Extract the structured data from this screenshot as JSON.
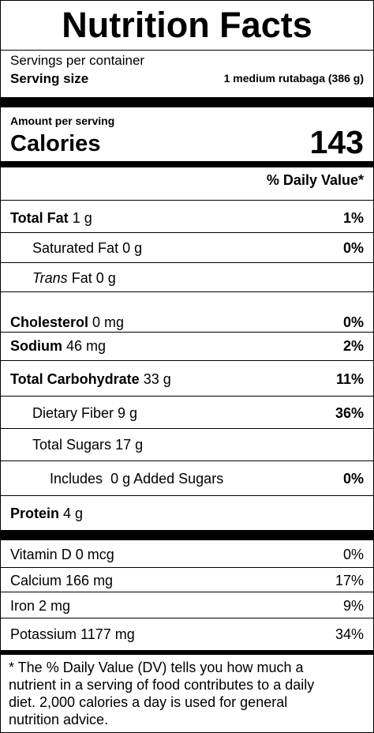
{
  "title": "Nutrition Facts",
  "servings_per_container_label": "Servings per container",
  "serving_size_label": "Serving size",
  "serving_size_value": "1 medium rutabaga (386 g)",
  "amount_per_serving": "Amount per serving",
  "calories_label": "Calories",
  "calories_value": "143",
  "daily_value_header": "% Daily Value*",
  "nutrients": {
    "total_fat": {
      "name": "Total Fat",
      "amount": "1 g",
      "dv": "1%"
    },
    "saturated_fat": {
      "name": "Saturated Fat",
      "amount": "0 g",
      "dv": "0%"
    },
    "trans_fat": {
      "name": "Trans",
      "name_suffix": "Fat",
      "amount": "0 g"
    },
    "cholesterol": {
      "name": "Cholesterol",
      "amount": "0 mg",
      "dv": "0%"
    },
    "sodium": {
      "name": "Sodium",
      "amount": "46 mg",
      "dv": "2%"
    },
    "total_carbohydrate": {
      "name": "Total Carbohydrate",
      "amount": "33 g",
      "dv": "11%"
    },
    "dietary_fiber": {
      "name": "Dietary Fiber",
      "amount": "9 g",
      "dv": "36%"
    },
    "total_sugars": {
      "name": "Total Sugars",
      "amount": "17 g"
    },
    "added_sugars": {
      "prefix": "Includes",
      "amount": "0 g",
      "name": "Added Sugars",
      "dv": "0%"
    },
    "protein": {
      "name": "Protein",
      "amount": "4 g"
    }
  },
  "vitamins": {
    "vitamin_d": {
      "name": "Vitamin D",
      "amount": "0 mcg",
      "dv": "0%"
    },
    "calcium": {
      "name": "Calcium",
      "amount": "166 mg",
      "dv": "17%"
    },
    "iron": {
      "name": "Iron",
      "amount": "2 mg",
      "dv": "9%"
    },
    "potassium": {
      "name": "Potassium",
      "amount": "1177 mg",
      "dv": "34%"
    }
  },
  "footnote_lines": [
    "* The % Daily Value (DV) tells you how much a",
    "nutrient in a serving of food contributes to a daily",
    "diet. 2,000 calories a day is used for general",
    "nutrition advice."
  ]
}
